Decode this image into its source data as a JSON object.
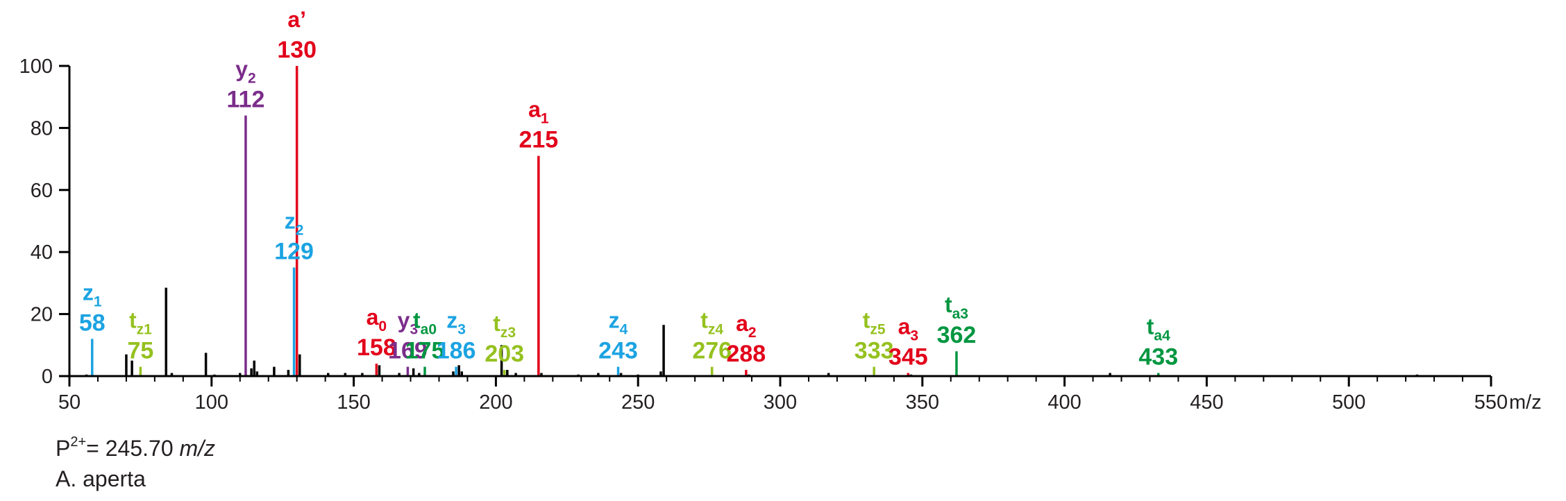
{
  "chart_data": {
    "type": "bar",
    "title": "",
    "xlabel": "",
    "x_unit": "m/z",
    "ylabel": "",
    "xlim": [
      50,
      550
    ],
    "ylim": [
      0,
      100
    ],
    "x_ticks": [
      50,
      100,
      150,
      200,
      250,
      300,
      350,
      400,
      450,
      500,
      550
    ],
    "y_ticks": [
      0,
      20,
      40,
      60,
      80,
      100
    ],
    "grid": false,
    "legend": "none",
    "colors": {
      "a": "#e2001a",
      "y": "#7b2d8b",
      "z": "#1ba3e2",
      "tz": "#95c11f",
      "ta": "#009640",
      "unassigned": "#000000"
    },
    "annotated_peaks": [
      {
        "letter": "z",
        "sub": "1",
        "mz": 58,
        "intensity": 12,
        "series": "z"
      },
      {
        "letter": "t",
        "sub": "z1",
        "mz": 75,
        "intensity": 3,
        "series": "tz"
      },
      {
        "letter": "y",
        "sub": "2",
        "mz": 112,
        "intensity": 84,
        "series": "y"
      },
      {
        "letter": "z",
        "sub": "2",
        "mz": 129,
        "intensity": 35,
        "series": "z"
      },
      {
        "letter": "a’",
        "sub": "",
        "mz": 130,
        "intensity": 100,
        "series": "a"
      },
      {
        "letter": "a",
        "sub": "0",
        "mz": 158,
        "intensity": 4,
        "series": "a"
      },
      {
        "letter": "y",
        "sub": "3",
        "mz": 169,
        "intensity": 3,
        "series": "y"
      },
      {
        "letter": "t",
        "sub": "a0",
        "mz": 175,
        "intensity": 3,
        "series": "ta"
      },
      {
        "letter": "z",
        "sub": "3",
        "mz": 186,
        "intensity": 3,
        "series": "z"
      },
      {
        "letter": "t",
        "sub": "z3",
        "mz": 203,
        "intensity": 2,
        "series": "tz"
      },
      {
        "letter": "a",
        "sub": "1",
        "mz": 215,
        "intensity": 71,
        "series": "a"
      },
      {
        "letter": "z",
        "sub": "4",
        "mz": 243,
        "intensity": 3,
        "series": "z"
      },
      {
        "letter": "t",
        "sub": "z4",
        "mz": 276,
        "intensity": 3,
        "series": "tz"
      },
      {
        "letter": "a",
        "sub": "2",
        "mz": 288,
        "intensity": 2,
        "series": "a"
      },
      {
        "letter": "t",
        "sub": "z5",
        "mz": 333,
        "intensity": 3,
        "series": "tz"
      },
      {
        "letter": "a",
        "sub": "3",
        "mz": 345,
        "intensity": 1,
        "series": "a"
      },
      {
        "letter": "t",
        "sub": "a3",
        "mz": 362,
        "intensity": 8,
        "series": "ta"
      },
      {
        "letter": "t",
        "sub": "a4",
        "mz": 433,
        "intensity": 1,
        "series": "ta"
      }
    ],
    "unassigned_peaks": [
      {
        "mz": 56,
        "intensity": 0.5
      },
      {
        "mz": 70,
        "intensity": 7
      },
      {
        "mz": 72,
        "intensity": 5
      },
      {
        "mz": 84,
        "intensity": 28.5
      },
      {
        "mz": 86,
        "intensity": 1
      },
      {
        "mz": 98,
        "intensity": 7.5
      },
      {
        "mz": 101,
        "intensity": 0.5
      },
      {
        "mz": 110,
        "intensity": 1
      },
      {
        "mz": 114,
        "intensity": 2.5
      },
      {
        "mz": 115,
        "intensity": 5
      },
      {
        "mz": 116,
        "intensity": 1.5
      },
      {
        "mz": 122,
        "intensity": 3
      },
      {
        "mz": 127,
        "intensity": 2
      },
      {
        "mz": 131,
        "intensity": 7
      },
      {
        "mz": 141,
        "intensity": 1
      },
      {
        "mz": 147,
        "intensity": 1
      },
      {
        "mz": 153,
        "intensity": 1
      },
      {
        "mz": 159,
        "intensity": 3.5
      },
      {
        "mz": 166,
        "intensity": 1
      },
      {
        "mz": 171,
        "intensity": 2.5
      },
      {
        "mz": 173,
        "intensity": 1
      },
      {
        "mz": 185,
        "intensity": 1.5
      },
      {
        "mz": 187,
        "intensity": 3.5
      },
      {
        "mz": 188,
        "intensity": 1.5
      },
      {
        "mz": 202,
        "intensity": 10
      },
      {
        "mz": 204,
        "intensity": 2
      },
      {
        "mz": 207,
        "intensity": 1
      },
      {
        "mz": 216,
        "intensity": 1
      },
      {
        "mz": 229,
        "intensity": 0.5
      },
      {
        "mz": 236,
        "intensity": 1
      },
      {
        "mz": 244,
        "intensity": 1
      },
      {
        "mz": 250,
        "intensity": 0.5
      },
      {
        "mz": 258,
        "intensity": 1.5
      },
      {
        "mz": 259,
        "intensity": 16.5
      },
      {
        "mz": 289,
        "intensity": 0.5
      },
      {
        "mz": 317,
        "intensity": 1
      },
      {
        "mz": 346,
        "intensity": 0.5
      },
      {
        "mz": 416,
        "intensity": 1
      },
      {
        "mz": 524,
        "intensity": 0.5
      }
    ]
  },
  "captions": {
    "precursor_prefix": "P",
    "precursor_charge": "2+",
    "precursor_value": "= 245.70 ",
    "precursor_unit": "m/z",
    "species": "A. aperta"
  }
}
